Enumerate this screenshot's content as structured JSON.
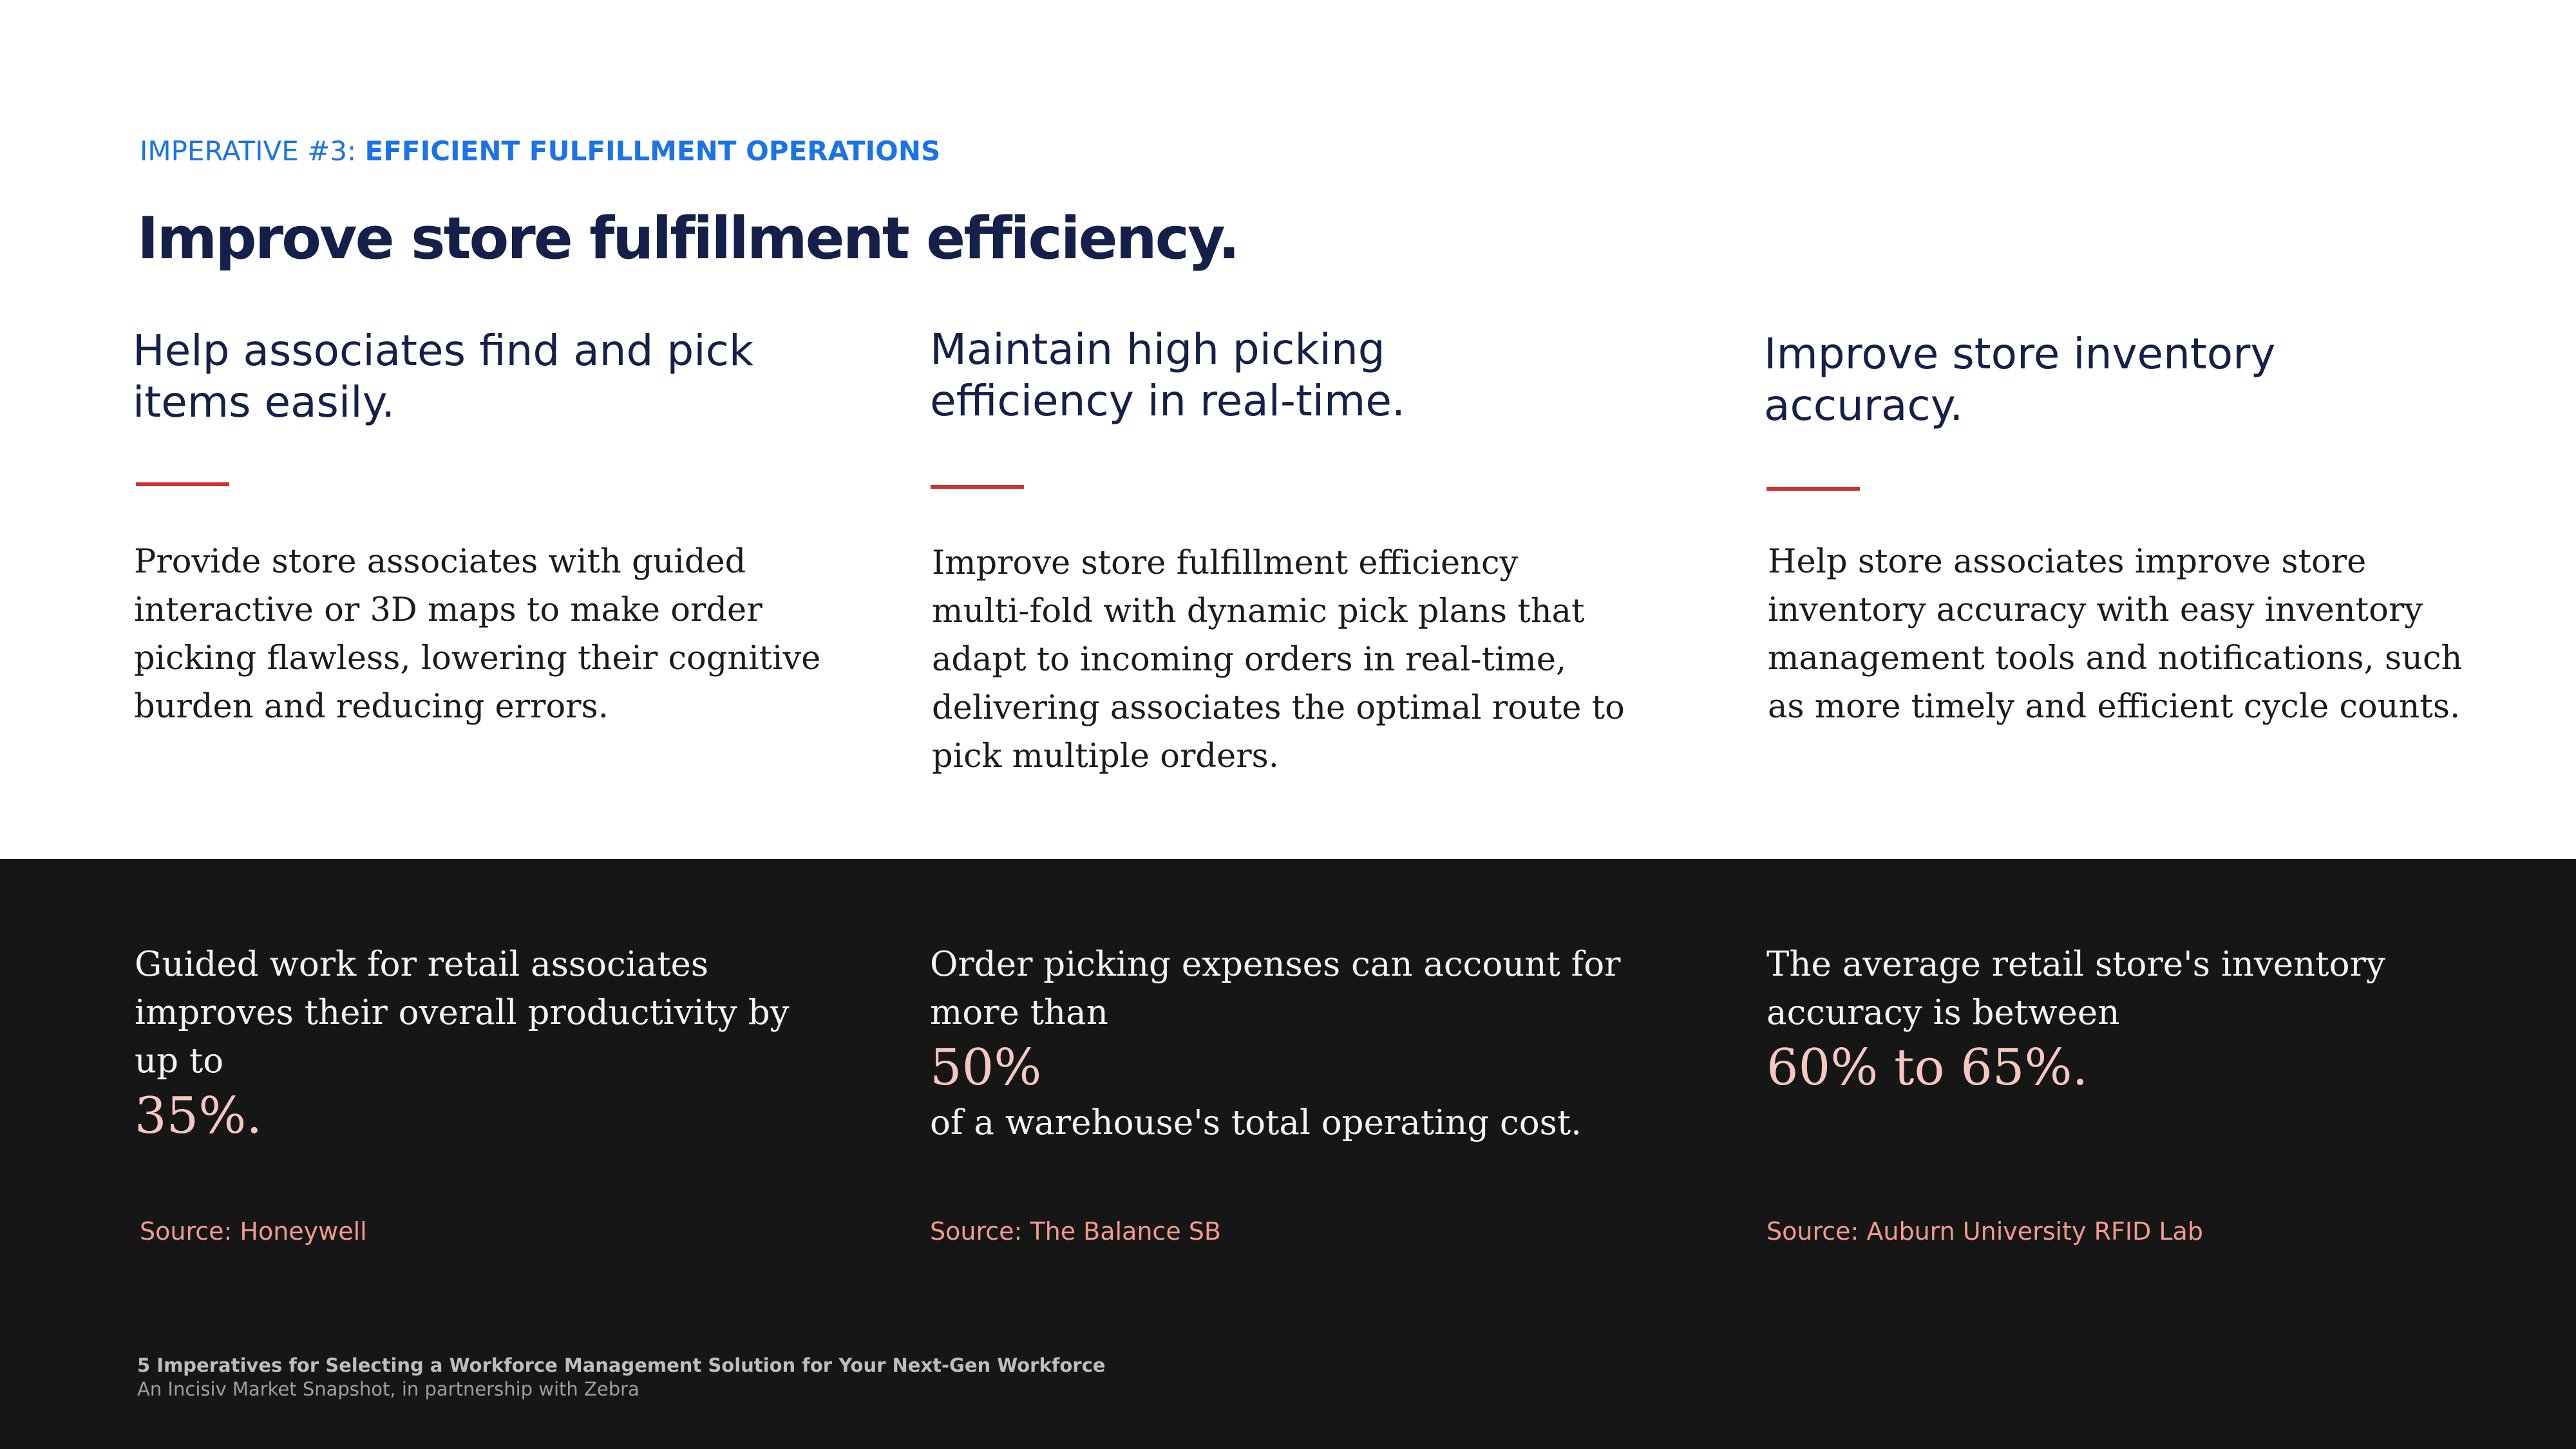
{
  "eyebrow": {
    "lead": "IMPERATIVE #3: ",
    "strong": "EFFICIENT FULFILLMENT OPERATIONS"
  },
  "page_title": "Improve store fulfillment efficiency.",
  "columns": [
    {
      "heading": [
        "Help associates find and pick",
        "items easily."
      ],
      "body": [
        "Provide store associates with guided",
        "interactive or 3D maps to make order",
        "picking flawless, lowering their cognitive",
        "burden and reducing errors."
      ]
    },
    {
      "heading": [
        "Maintain high picking",
        "efficiency in real-time."
      ],
      "body": [
        "Improve store fulfillment efficiency",
        "multi-fold with dynamic pick plans that",
        "adapt to incoming orders in real-time,",
        "delivering associates the optimal route to",
        "pick multiple orders."
      ]
    },
    {
      "heading": [
        "Improve store inventory",
        "accuracy."
      ],
      "body": [
        "Help store associates improve store",
        "inventory accuracy with easy inventory",
        "management tools and notifications, such",
        "as more timely and efficient cycle counts."
      ]
    }
  ],
  "stats": [
    {
      "intro": [
        "Guided work for retail associates",
        "improves their overall productivity by",
        "up to"
      ],
      "figure": "35%.",
      "outro": "",
      "source": "Source: Honeywell"
    },
    {
      "intro": [
        "Order picking expenses can account for",
        "more than"
      ],
      "figure": "50%",
      "outro": "of a warehouse's total operating cost.",
      "source": "Source: The Balance SB"
    },
    {
      "intro": [
        "The average retail store's inventory",
        "accuracy is between"
      ],
      "figure": "60% to 65%.",
      "outro": "",
      "source": "Source: Auburn University RFID Lab"
    }
  ],
  "footer": {
    "title": "5 Imperatives for Selecting a Workforce Management Solution for Your Next-Gen Workforce",
    "subtitle": "An Incisiv Market Snapshot, in partnership with Zebra"
  },
  "colors": {
    "accent_blue": "#1a73e8",
    "navy": "#15204a",
    "rule_red": "#d32f2f",
    "band_dark": "#161616",
    "stat_pink": "#f4c8c0",
    "source_salmon": "#f29a8e"
  }
}
